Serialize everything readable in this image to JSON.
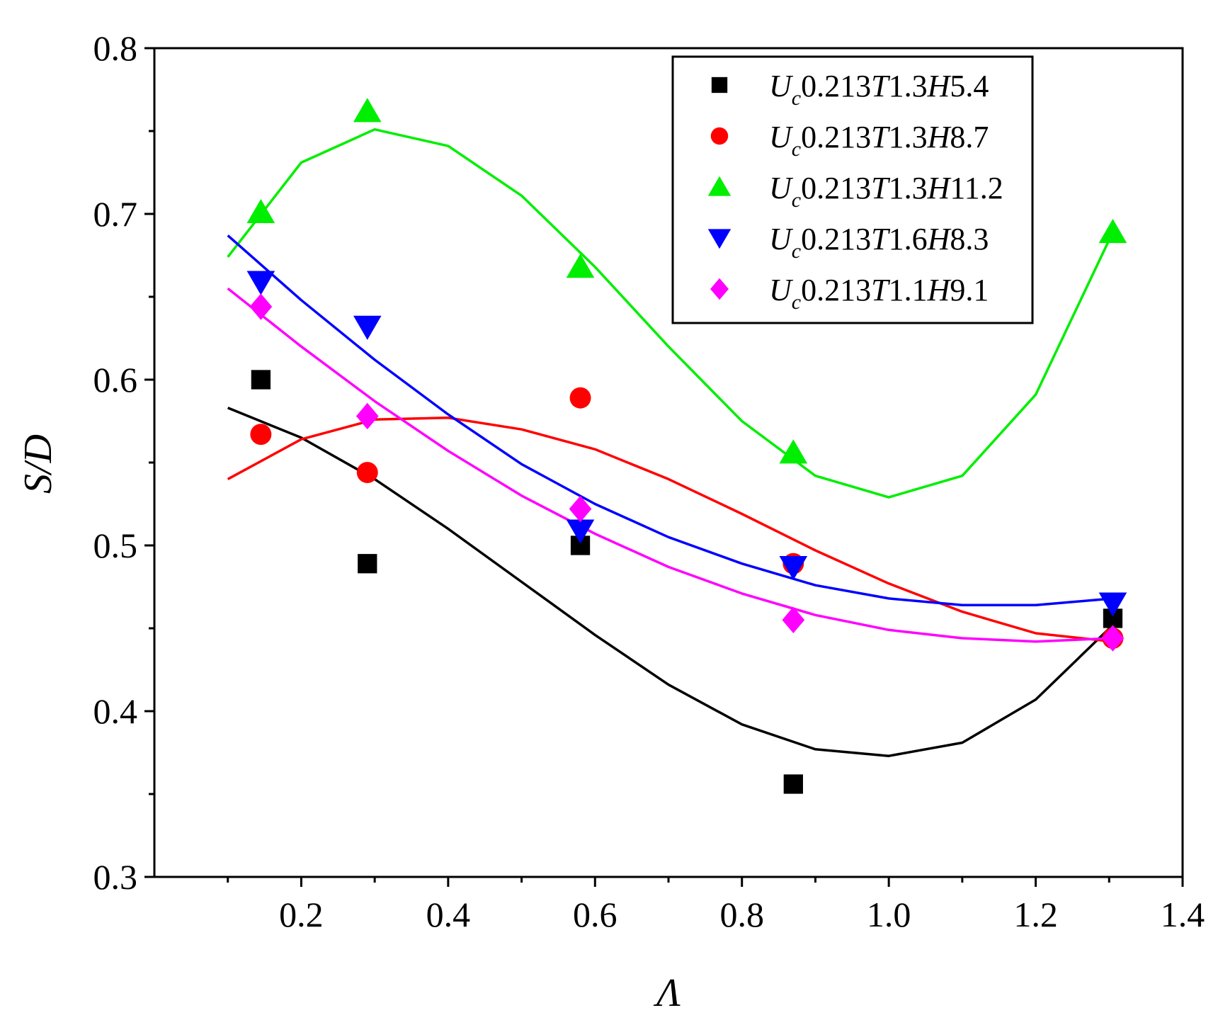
{
  "chart_data": {
    "type": "scatter",
    "title": "",
    "xlabel": "Λ",
    "ylabel": "S/D",
    "xlim": [
      0.0,
      1.4
    ],
    "ylim": [
      0.3,
      0.8
    ],
    "xticks": [
      0.2,
      0.4,
      0.6,
      0.8,
      1.0,
      1.2,
      1.4
    ],
    "xtick_labels": [
      "0.2",
      "0.4",
      "0.6",
      "0.8",
      "1.0",
      "1.2",
      "1.4"
    ],
    "yticks": [
      0.3,
      0.4,
      0.5,
      0.6,
      0.7,
      0.8
    ],
    "ytick_labels": [
      "0.3",
      "0.4",
      "0.5",
      "0.6",
      "0.7",
      "0.8"
    ],
    "grid": false,
    "legend_position": "top-right",
    "series": [
      {
        "name": "Uc0.213T1.3H5.4",
        "legend": {
          "sym1": "U",
          "sub": "c",
          "num1": "0.213",
          "sym2": "T",
          "num2": "1.3",
          "sym3": "H",
          "num3": "5.4"
        },
        "color": "#000000",
        "marker": "square",
        "points": [
          [
            0.145,
            0.6
          ],
          [
            0.29,
            0.489
          ],
          [
            0.58,
            0.5
          ],
          [
            0.87,
            0.356
          ],
          [
            1.305,
            0.456
          ]
        ],
        "fit": [
          [
            0.1,
            0.583
          ],
          [
            0.2,
            0.565
          ],
          [
            0.3,
            0.54
          ],
          [
            0.4,
            0.51
          ],
          [
            0.5,
            0.478
          ],
          [
            0.6,
            0.446
          ],
          [
            0.7,
            0.416
          ],
          [
            0.8,
            0.392
          ],
          [
            0.9,
            0.377
          ],
          [
            1.0,
            0.373
          ],
          [
            1.1,
            0.381
          ],
          [
            1.2,
            0.407
          ],
          [
            1.305,
            0.452
          ]
        ]
      },
      {
        "name": "Uc0.213T1.3H8.7",
        "legend": {
          "sym1": "U",
          "sub": "c",
          "num1": "0.213",
          "sym2": "T",
          "num2": "1.3",
          "sym3": "H",
          "num3": "8.7"
        },
        "color": "#ff0000",
        "marker": "circle",
        "points": [
          [
            0.145,
            0.567
          ],
          [
            0.29,
            0.544
          ],
          [
            0.58,
            0.589
          ],
          [
            0.87,
            0.489
          ],
          [
            1.305,
            0.444
          ]
        ],
        "fit": [
          [
            0.1,
            0.54
          ],
          [
            0.2,
            0.564
          ],
          [
            0.3,
            0.576
          ],
          [
            0.4,
            0.577
          ],
          [
            0.5,
            0.57
          ],
          [
            0.6,
            0.558
          ],
          [
            0.7,
            0.54
          ],
          [
            0.8,
            0.519
          ],
          [
            0.9,
            0.497
          ],
          [
            1.0,
            0.477
          ],
          [
            1.1,
            0.46
          ],
          [
            1.2,
            0.447
          ],
          [
            1.305,
            0.442
          ]
        ]
      },
      {
        "name": "Uc0.213T1.3H11.2",
        "legend": {
          "sym1": "U",
          "sub": "c",
          "num1": "0.213",
          "sym2": "T",
          "num2": "1.3",
          "sym3": "H",
          "num3": "11.2"
        },
        "color": "#00ee00",
        "marker": "triangle-up",
        "points": [
          [
            0.145,
            0.701
          ],
          [
            0.29,
            0.762
          ],
          [
            0.58,
            0.668
          ],
          [
            0.87,
            0.556
          ],
          [
            1.305,
            0.689
          ]
        ],
        "fit": [
          [
            0.1,
            0.674
          ],
          [
            0.2,
            0.731
          ],
          [
            0.3,
            0.751
          ],
          [
            0.4,
            0.741
          ],
          [
            0.5,
            0.711
          ],
          [
            0.6,
            0.668
          ],
          [
            0.7,
            0.62
          ],
          [
            0.8,
            0.575
          ],
          [
            0.9,
            0.542
          ],
          [
            1.0,
            0.529
          ],
          [
            1.1,
            0.542
          ],
          [
            1.2,
            0.591
          ],
          [
            1.305,
            0.689
          ]
        ]
      },
      {
        "name": "Uc0.213T1.6H8.3",
        "legend": {
          "sym1": "U",
          "sub": "c",
          "num1": "0.213",
          "sym2": "T",
          "num2": "1.6",
          "sym3": "H",
          "num3": "8.3"
        },
        "color": "#0000ff",
        "marker": "triangle-down",
        "points": [
          [
            0.145,
            0.659
          ],
          [
            0.29,
            0.632
          ],
          [
            0.58,
            0.509
          ],
          [
            0.87,
            0.487
          ],
          [
            1.305,
            0.465
          ]
        ],
        "fit": [
          [
            0.1,
            0.687
          ],
          [
            0.2,
            0.648
          ],
          [
            0.3,
            0.612
          ],
          [
            0.4,
            0.579
          ],
          [
            0.5,
            0.549
          ],
          [
            0.6,
            0.525
          ],
          [
            0.7,
            0.505
          ],
          [
            0.8,
            0.489
          ],
          [
            0.9,
            0.476
          ],
          [
            1.0,
            0.468
          ],
          [
            1.1,
            0.464
          ],
          [
            1.2,
            0.464
          ],
          [
            1.305,
            0.468
          ]
        ]
      },
      {
        "name": "Uc0.213T1.1H9.1",
        "legend": {
          "sym1": "U",
          "sub": "c",
          "num1": "0.213",
          "sym2": "T",
          "num2": "1.1",
          "sym3": "H",
          "num3": "9.1"
        },
        "color": "#ff00ff",
        "marker": "diamond",
        "points": [
          [
            0.145,
            0.644
          ],
          [
            0.29,
            0.578
          ],
          [
            0.58,
            0.522
          ],
          [
            0.87,
            0.455
          ],
          [
            1.305,
            0.444
          ]
        ],
        "fit": [
          [
            0.1,
            0.655
          ],
          [
            0.2,
            0.62
          ],
          [
            0.3,
            0.587
          ],
          [
            0.4,
            0.557
          ],
          [
            0.5,
            0.53
          ],
          [
            0.6,
            0.507
          ],
          [
            0.7,
            0.487
          ],
          [
            0.8,
            0.471
          ],
          [
            0.9,
            0.458
          ],
          [
            1.0,
            0.449
          ],
          [
            1.1,
            0.444
          ],
          [
            1.2,
            0.442
          ],
          [
            1.305,
            0.444
          ]
        ]
      }
    ]
  }
}
